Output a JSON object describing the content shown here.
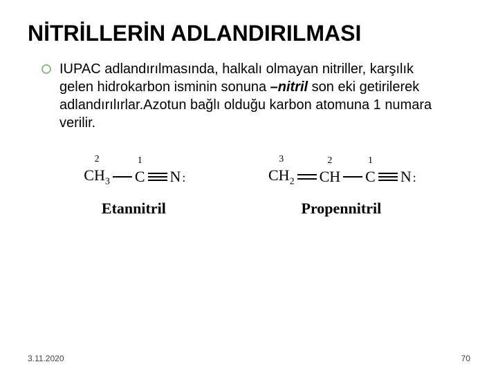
{
  "title": "NİTRİLLERİN ADLANDIRILMASI",
  "paragraph": {
    "pre": "IUPAC adlandırılmasında, halkalı olmayan nitriller, karşılık gelen hidrokarbon isminin sonuna ",
    "suffix": "–nitril",
    "post": " son eki getirilerek adlandırılırlar.Azotun bağlı olduğu karbon atomuna 1 numara verilir."
  },
  "structures": [
    {
      "name": "Etannitril",
      "atoms": [
        {
          "label": "CH",
          "sub": "3",
          "num": "2"
        },
        {
          "label": "C",
          "sub": "",
          "num": "1"
        },
        {
          "label": "N",
          "sub": "",
          "num": "",
          "lonepair": true
        }
      ],
      "bonds": [
        "single",
        "triple"
      ]
    },
    {
      "name": "Propennitril",
      "atoms": [
        {
          "label": "CH",
          "sub": "2",
          "num": "3"
        },
        {
          "label": "CH",
          "sub": "",
          "num": "2"
        },
        {
          "label": "C",
          "sub": "",
          "num": "1"
        },
        {
          "label": "N",
          "sub": "",
          "num": "",
          "lonepair": true
        }
      ],
      "bonds": [
        "double",
        "single",
        "triple"
      ]
    }
  ],
  "footer": {
    "date": "3.11.2020",
    "page": "70"
  },
  "colors": {
    "bullet_border": "#8fbc8f",
    "text": "#000000",
    "bg": "#ffffff"
  }
}
